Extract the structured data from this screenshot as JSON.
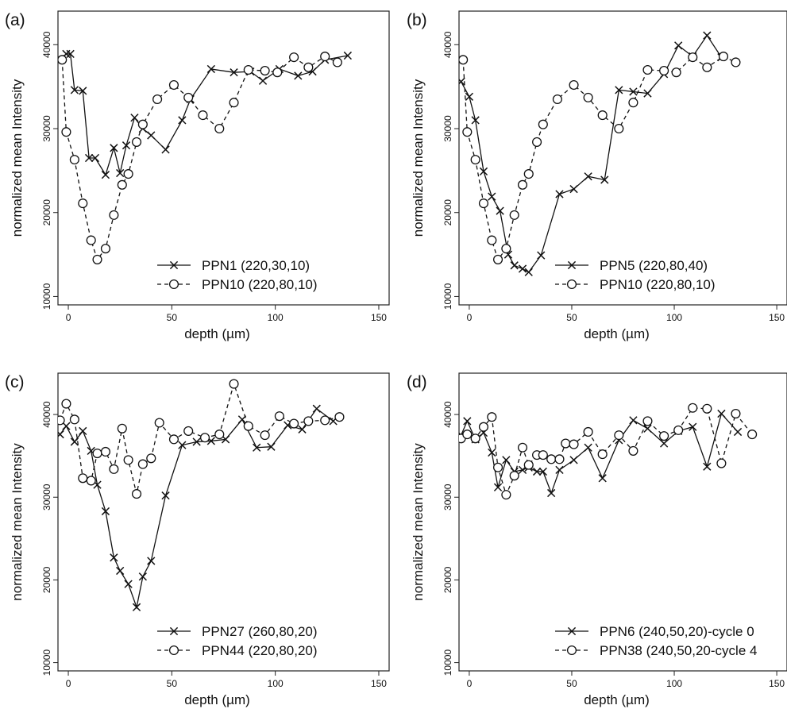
{
  "chart_data": [
    {
      "type": "line",
      "panel_label": "(a)",
      "xlabel": "depth (µm)",
      "ylabel": "normalized mean Intensity",
      "xlim": [
        -5,
        155
      ],
      "ylim": [
        9000,
        44000
      ],
      "xticks": [
        0,
        50,
        100,
        150
      ],
      "yticks": [
        10000,
        20000,
        30000,
        40000
      ],
      "legend_position": "bottom-right",
      "series": [
        {
          "name": "PPN1 (220,30,10)",
          "marker": "x",
          "line_style": "solid",
          "x": [
            -4,
            -1,
            1,
            3,
            7,
            10,
            13,
            18,
            22,
            25,
            28,
            32,
            36,
            40,
            47,
            55,
            59,
            69,
            80,
            88,
            94,
            102,
            111,
            118,
            124,
            135
          ],
          "y": [
            38300,
            38900,
            38900,
            34600,
            34500,
            26500,
            26500,
            24500,
            27700,
            24700,
            28000,
            31300,
            30000,
            29200,
            27500,
            31000,
            33500,
            37100,
            36700,
            36800,
            35700,
            37100,
            36300,
            36800,
            38200,
            38700
          ]
        },
        {
          "name": "PPN10 (220,80,10)",
          "marker": "o",
          "line_style": "dashed",
          "x": [
            -3,
            -1,
            3,
            7,
            11,
            14,
            18,
            22,
            26,
            29,
            33,
            36,
            43,
            51,
            58,
            65,
            73,
            80,
            87,
            95,
            101,
            109,
            116,
            124,
            130
          ],
          "y": [
            38200,
            29600,
            26300,
            21100,
            16700,
            14400,
            15700,
            19700,
            23300,
            24600,
            28400,
            30500,
            33500,
            35200,
            33700,
            31600,
            30000,
            33100,
            37000,
            36900,
            36700,
            38500,
            37300,
            38600,
            37900
          ]
        }
      ]
    },
    {
      "type": "line",
      "panel_label": "(b)",
      "xlabel": "depth (µm)",
      "ylabel": "normalized mean Intensity",
      "xlim": [
        -5,
        155
      ],
      "ylim": [
        9000,
        44000
      ],
      "xticks": [
        0,
        50,
        100,
        150
      ],
      "yticks": [
        10000,
        20000,
        30000,
        40000
      ],
      "legend_position": "bottom-right",
      "series": [
        {
          "name": "PPN5 (220,80,40)",
          "marker": "x",
          "line_style": "solid",
          "x": [
            -4,
            0,
            3,
            7,
            11,
            15,
            19,
            22,
            26,
            29,
            35,
            44,
            51,
            58,
            66,
            73,
            80,
            87,
            95,
            102,
            109,
            116,
            123
          ],
          "y": [
            35600,
            33800,
            31000,
            24900,
            21900,
            20200,
            15000,
            13700,
            13300,
            12900,
            14900,
            22200,
            22800,
            24300,
            23900,
            34600,
            34400,
            34200,
            36500,
            39900,
            38600,
            41100,
            38500
          ]
        },
        {
          "name": "PPN10 (220,80,10)",
          "marker": "o",
          "line_style": "dashed",
          "x": [
            -3,
            -1,
            3,
            7,
            11,
            14,
            18,
            22,
            26,
            29,
            33,
            36,
            43,
            51,
            58,
            65,
            73,
            80,
            87,
            95,
            101,
            109,
            116,
            124,
            130
          ],
          "y": [
            38200,
            29600,
            26300,
            21100,
            16700,
            14400,
            15700,
            19700,
            23300,
            24600,
            28400,
            30500,
            33500,
            35200,
            33700,
            31600,
            30000,
            33100,
            37000,
            36900,
            36700,
            38500,
            37300,
            38600,
            37900
          ]
        }
      ]
    },
    {
      "type": "line",
      "panel_label": "(c)",
      "xlabel": "depth (µm)",
      "ylabel": "normalized mean Intensity",
      "xlim": [
        -5,
        155
      ],
      "ylim": [
        9000,
        45000
      ],
      "xticks": [
        0,
        50,
        100,
        150
      ],
      "yticks": [
        10000,
        20000,
        30000,
        40000
      ],
      "legend_position": "bottom-right",
      "series": [
        {
          "name": "PPN27 (260,80,20)",
          "marker": "x",
          "line_style": "solid",
          "x": [
            -4,
            -1,
            3,
            7,
            11,
            14,
            18,
            22,
            25,
            29,
            33,
            36,
            40,
            47,
            55,
            62,
            69,
            76,
            84,
            91,
            98,
            106,
            113,
            120,
            128
          ],
          "y": [
            37600,
            38600,
            36700,
            38000,
            35600,
            31500,
            28300,
            22700,
            21100,
            19500,
            16700,
            20400,
            22300,
            30200,
            36300,
            36700,
            36800,
            37000,
            39400,
            36000,
            36100,
            38700,
            38200,
            40700,
            39200
          ]
        },
        {
          "name": "PPN44 (220,80,20)",
          "marker": "o",
          "line_style": "dashed",
          "x": [
            -4,
            -1,
            3,
            7,
            11,
            14,
            18,
            22,
            26,
            29,
            33,
            36,
            40,
            44,
            51,
            58,
            66,
            73,
            80,
            87,
            95,
            102,
            109,
            116,
            124,
            131
          ],
          "y": [
            39300,
            41300,
            39400,
            32300,
            32000,
            35300,
            35500,
            33400,
            38300,
            34500,
            30400,
            34000,
            34700,
            39000,
            37000,
            38000,
            37200,
            37600,
            43700,
            38600,
            37500,
            39800,
            38900,
            39200,
            39300,
            39700
          ]
        }
      ]
    },
    {
      "type": "line",
      "panel_label": "(d)",
      "xlabel": "depth (µm)",
      "ylabel": "normalized mean Intensity",
      "xlim": [
        -5,
        155
      ],
      "ylim": [
        9000,
        45000
      ],
      "xticks": [
        0,
        50,
        100,
        150
      ],
      "yticks": [
        10000,
        20000,
        30000,
        40000
      ],
      "legend_position": "bottom-right",
      "series": [
        {
          "name": "PPN6 (240,50,20)-cycle 0",
          "marker": "x",
          "line_style": "solid",
          "x": [
            -4,
            -1,
            3,
            7,
            11,
            14,
            18,
            22,
            26,
            29,
            33,
            36,
            40,
            44,
            51,
            58,
            65,
            73,
            80,
            87,
            95,
            102,
            109,
            116,
            123,
            131
          ],
          "y": [
            37500,
            39200,
            37000,
            37800,
            35400,
            31200,
            34500,
            33100,
            33300,
            33600,
            33100,
            33100,
            30500,
            33300,
            34500,
            36000,
            32300,
            36900,
            39300,
            38300,
            36500,
            38000,
            38500,
            33700,
            40100,
            37900
          ]
        },
        {
          "name": "PPN38 (240,50,20-cycle 4",
          "marker": "o",
          "line_style": "dashed",
          "x": [
            -4,
            -1,
            3,
            7,
            11,
            14,
            18,
            22,
            26,
            29,
            33,
            36,
            40,
            44,
            47,
            51,
            58,
            65,
            73,
            80,
            87,
            95,
            102,
            109,
            116,
            123,
            130,
            138
          ],
          "y": [
            37100,
            37600,
            37100,
            38500,
            39700,
            33600,
            30300,
            32600,
            36000,
            33900,
            35100,
            35100,
            34600,
            34600,
            36500,
            36400,
            37900,
            35200,
            37500,
            35600,
            39200,
            37400,
            38100,
            40800,
            40700,
            34100,
            40100,
            37600
          ]
        }
      ]
    }
  ]
}
